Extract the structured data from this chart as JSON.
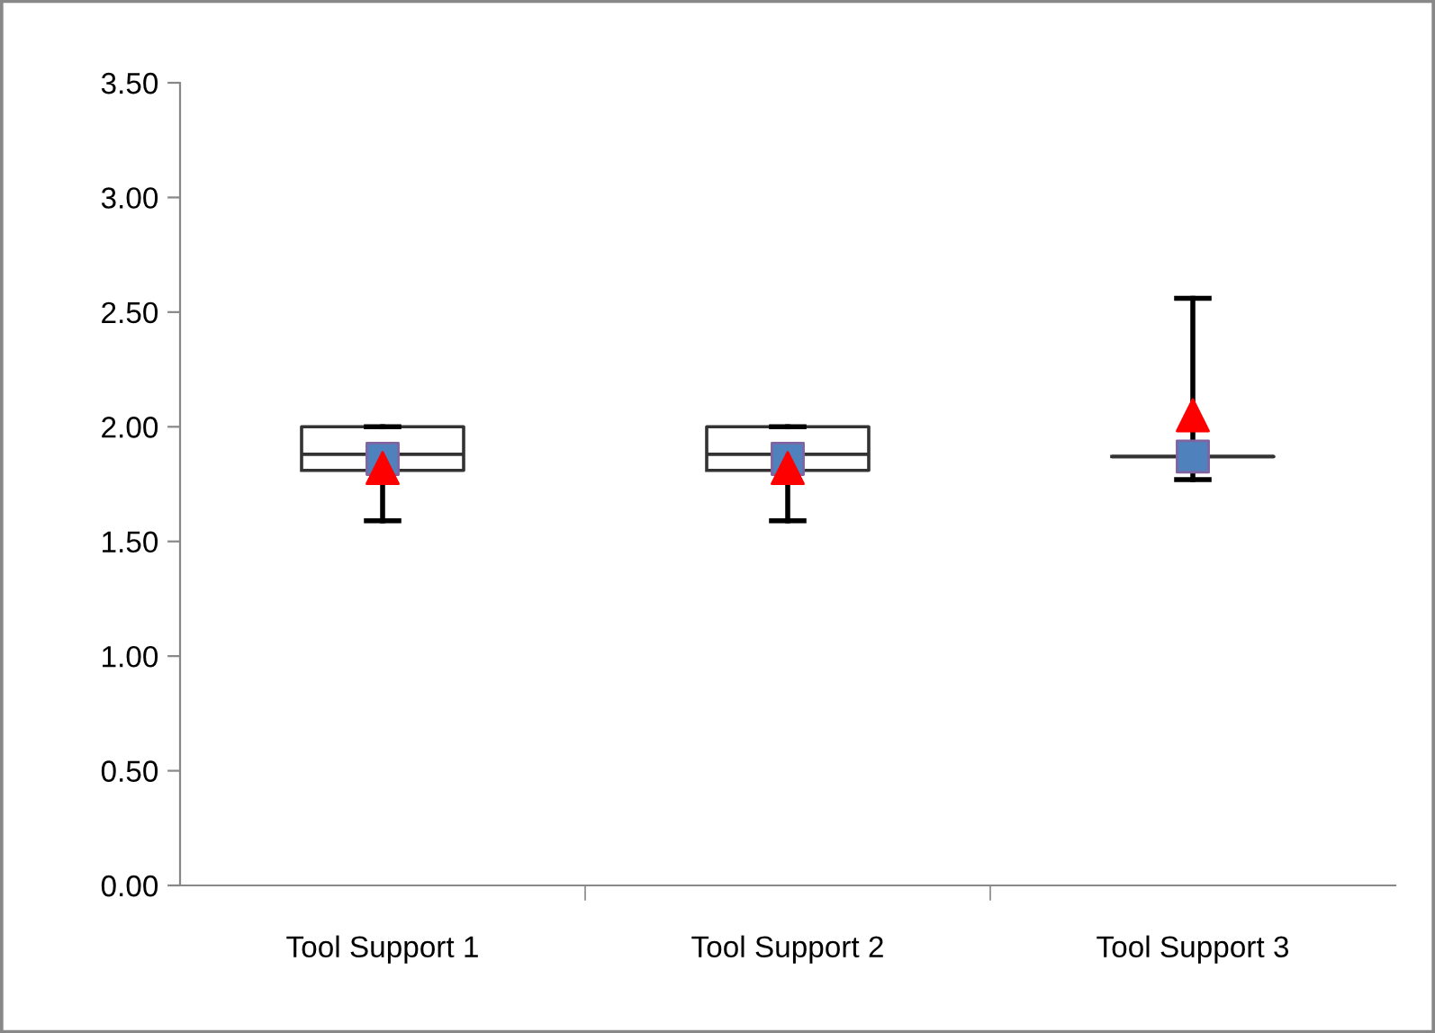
{
  "chart_data": {
    "type": "box",
    "categories": [
      "Tool Support 1",
      "Tool Support 2",
      "Tool Support 3"
    ],
    "boxes": [
      {
        "low": 1.59,
        "q1": 1.81,
        "median": 1.88,
        "q3": 2.0,
        "high": 2.0
      },
      {
        "low": 1.59,
        "q1": 1.81,
        "median": 1.88,
        "q3": 2.0,
        "high": 2.0
      },
      {
        "low": 1.77,
        "q1": 1.87,
        "median": 1.87,
        "q3": 1.87,
        "high": 2.56
      }
    ],
    "series": [
      {
        "type": "scatter",
        "x": [
          "Tool Support 1",
          "Tool Support 2",
          "Tool Support 3"
        ],
        "values": [
          1.86,
          1.86,
          1.87
        ],
        "color": "#4f81bd",
        "marker": "square"
      },
      {
        "type": "scatter",
        "x": [
          "Tool Support 1",
          "Tool Support 2",
          "Tool Support 3"
        ],
        "values": [
          1.82,
          1.82,
          2.05
        ],
        "color": "#ff0000",
        "marker": "triangle"
      }
    ],
    "ylim": [
      0,
      3.5
    ],
    "yticks": [
      {
        "value": 0,
        "label": "0.00"
      },
      {
        "value": 0.5,
        "label": "0.50"
      },
      {
        "value": 1.0,
        "label": "1.00"
      },
      {
        "value": 1.5,
        "label": "1.50"
      },
      {
        "value": 2.0,
        "label": "2.00"
      },
      {
        "value": 2.5,
        "label": "2.50"
      },
      {
        "value": 3.0,
        "label": "3.00"
      },
      {
        "value": 3.5,
        "label": "3.50"
      }
    ],
    "grid": false,
    "legend": false
  }
}
